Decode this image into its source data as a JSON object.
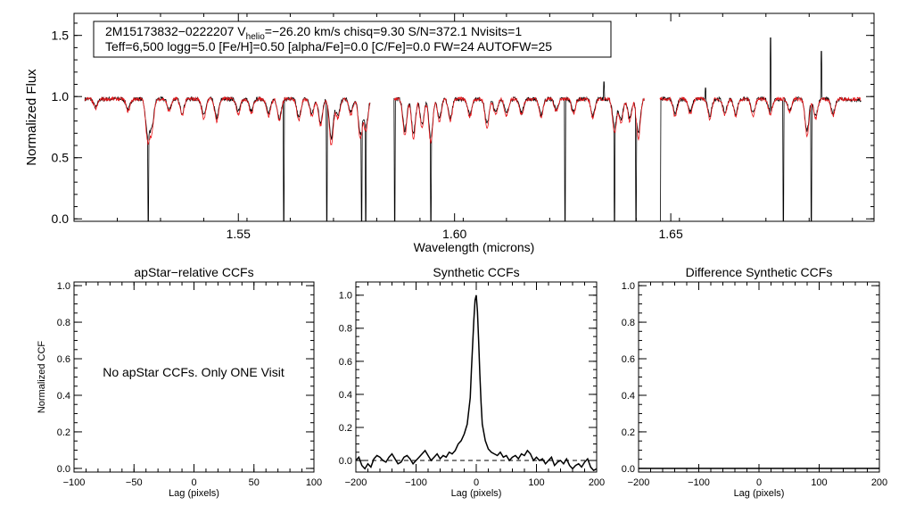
{
  "chart_data": [
    {
      "type": "line",
      "panel": "spectrum",
      "xlabel": "Wavelength (microns)",
      "ylabel": "Normalized Flux",
      "xlim": [
        1.512,
        1.697
      ],
      "ylim": [
        -0.02,
        1.68
      ],
      "xticks": [
        1.55,
        1.6,
        1.65
      ],
      "xtick_labels": [
        "1.55",
        "1.60",
        "1.65"
      ],
      "yticks": [
        0.0,
        0.5,
        1.0,
        1.5
      ],
      "ytick_labels": [
        "0.0",
        "0.5",
        "1.0",
        "1.5"
      ],
      "annotation": {
        "line1_parts": [
          "2M15173832−0222207  V",
          "helio",
          "=−26.20 km/s  chisq=9.30  S/N=372.1  Nvisits=1"
        ],
        "line2": "Teff=6,500 logg=5.0 [Fe/H]=0.50 [alpha/Fe]=0.0 [C/Fe]=0.0 FW=24 AUTOFW=25"
      },
      "chip_ranges": [
        [
          1.5145,
          1.5805
        ],
        [
          1.586,
          1.644
        ],
        [
          1.6475,
          1.694
        ]
      ],
      "continuum": 0.98,
      "absorption_lines": [
        [
          1.517,
          0.9
        ],
        [
          1.5245,
          0.88
        ],
        [
          1.529,
          0.65
        ],
        [
          1.53,
          0.72
        ],
        [
          1.534,
          0.88
        ],
        [
          1.537,
          0.85
        ],
        [
          1.542,
          0.82
        ],
        [
          1.545,
          0.8
        ],
        [
          1.55,
          0.86
        ],
        [
          1.553,
          0.86
        ],
        [
          1.557,
          0.84
        ],
        [
          1.5595,
          0.8
        ],
        [
          1.564,
          0.8
        ],
        [
          1.567,
          0.84
        ],
        [
          1.569,
          0.76
        ],
        [
          1.5715,
          0.6
        ],
        [
          1.573,
          0.82
        ],
        [
          1.576,
          0.85
        ],
        [
          1.5782,
          0.66
        ],
        [
          1.5795,
          0.72
        ],
        [
          1.5885,
          0.68
        ],
        [
          1.5905,
          0.65
        ],
        [
          1.5925,
          0.74
        ],
        [
          1.5945,
          0.62
        ],
        [
          1.5965,
          0.8
        ],
        [
          1.599,
          0.8
        ],
        [
          1.6035,
          0.83
        ],
        [
          1.6075,
          0.74
        ],
        [
          1.6095,
          0.85
        ],
        [
          1.612,
          0.84
        ],
        [
          1.6155,
          0.85
        ],
        [
          1.62,
          0.83
        ],
        [
          1.6235,
          0.88
        ],
        [
          1.6275,
          0.86
        ],
        [
          1.632,
          0.82
        ],
        [
          1.637,
          0.7
        ],
        [
          1.6385,
          0.78
        ],
        [
          1.6405,
          0.8
        ],
        [
          1.6425,
          0.66
        ],
        [
          1.651,
          0.84
        ],
        [
          1.6545,
          0.86
        ],
        [
          1.659,
          0.82
        ],
        [
          1.6625,
          0.85
        ],
        [
          1.665,
          0.84
        ],
        [
          1.669,
          0.84
        ],
        [
          1.673,
          0.86
        ],
        [
          1.6775,
          0.87
        ],
        [
          1.6815,
          0.68
        ],
        [
          1.6835,
          0.82
        ],
        [
          1.6875,
          0.84
        ]
      ],
      "telluric_dropouts": [
        1.5142,
        1.5292,
        1.5605,
        1.5705,
        1.5785,
        1.5795,
        1.5862,
        1.5945,
        1.6255,
        1.637,
        1.642,
        1.6475,
        1.676,
        1.6825
      ],
      "emission_spikes": [
        [
          1.6345,
          1.12
        ],
        [
          1.658,
          1.07
        ],
        [
          1.6731,
          1.48
        ],
        [
          1.6848,
          1.37
        ]
      ],
      "series": [
        {
          "name": "observed",
          "color": "#000000"
        },
        {
          "name": "synthetic",
          "color": "#e8171b"
        }
      ]
    },
    {
      "type": "line",
      "panel": "apstar-relative",
      "title": "apStar−relative CCFs",
      "xlabel": "Lag (pixels)",
      "ylabel": "Normalized CCF",
      "xlim": [
        -100,
        100
      ],
      "ylim": [
        -0.02,
        1.02
      ],
      "xticks": [
        -100,
        -50,
        0,
        50,
        100
      ],
      "xtick_labels": [
        "−100",
        "−50",
        "0",
        "50",
        "100"
      ],
      "yticks": [
        0.0,
        0.2,
        0.4,
        0.6,
        0.8,
        1.0
      ],
      "ytick_labels": [
        "0.0",
        "0.2",
        "0.4",
        "0.6",
        "0.8",
        "1.0"
      ],
      "message": "No apStar CCFs.  Only ONE Visit",
      "series": []
    },
    {
      "type": "line",
      "panel": "synthetic",
      "title": "Synthetic CCFs",
      "xlabel": "Lag (pixels)",
      "xlim": [
        -200,
        200
      ],
      "ylim": [
        -0.07,
        1.08
      ],
      "xticks": [
        -200,
        -100,
        0,
        100,
        200
      ],
      "xtick_labels": [
        "−200",
        "−100",
        "0",
        "100",
        "200"
      ],
      "yticks": [
        0.0,
        0.2,
        0.4,
        0.6,
        0.8,
        1.0
      ],
      "ytick_labels": [
        "0.0",
        "0.2",
        "0.4",
        "0.6",
        "0.8",
        "1.0"
      ],
      "reference_line": 0.0,
      "series": [
        {
          "x": [
            -200,
            -195,
            -190,
            -185,
            -180,
            -175,
            -170,
            -165,
            -160,
            -155,
            -150,
            -145,
            -140,
            -135,
            -130,
            -125,
            -120,
            -115,
            -110,
            -105,
            -100,
            -95,
            -90,
            -85,
            -80,
            -75,
            -70,
            -65,
            -60,
            -55,
            -50,
            -45,
            -40,
            -35,
            -30,
            -25,
            -20,
            -15,
            -10,
            -8,
            -6,
            -4,
            -2,
            0,
            2,
            4,
            6,
            8,
            10,
            15,
            20,
            25,
            30,
            35,
            40,
            45,
            50,
            55,
            60,
            65,
            70,
            75,
            80,
            85,
            90,
            95,
            100,
            105,
            110,
            115,
            120,
            125,
            130,
            135,
            140,
            145,
            150,
            155,
            160,
            165,
            170,
            175,
            180,
            185,
            190,
            195,
            200
          ],
          "y": [
            0.0,
            0.02,
            -0.03,
            -0.05,
            -0.02,
            -0.04,
            0.01,
            0.03,
            0.02,
            0.0,
            -0.01,
            0.02,
            0.04,
            0.01,
            -0.02,
            -0.01,
            0.02,
            0.03,
            0.01,
            -0.02,
            0.0,
            0.02,
            0.04,
            0.06,
            0.03,
            0.0,
            0.02,
            0.04,
            0.01,
            0.03,
            0.02,
            0.05,
            0.04,
            0.06,
            0.1,
            0.12,
            0.16,
            0.22,
            0.38,
            0.55,
            0.7,
            0.85,
            0.97,
            1.0,
            0.9,
            0.72,
            0.52,
            0.35,
            0.22,
            0.12,
            0.07,
            0.05,
            0.04,
            0.03,
            0.05,
            0.02,
            0.03,
            0.0,
            0.02,
            0.03,
            0.01,
            0.04,
            0.03,
            0.06,
            0.04,
            0.0,
            0.02,
            0.0,
            0.01,
            -0.02,
            0.0,
            0.02,
            -0.03,
            -0.01,
            0.0,
            -0.02,
            0.01,
            -0.03,
            -0.05,
            -0.03,
            -0.02,
            -0.04,
            -0.01,
            0.01,
            -0.04,
            -0.06,
            -0.05
          ]
        }
      ]
    },
    {
      "type": "line",
      "panel": "difference-synthetic",
      "title": "Difference Synthetic CCFs",
      "xlabel": "Lag (pixels)",
      "xlim": [
        -200,
        200
      ],
      "ylim": [
        -0.02,
        1.02
      ],
      "xticks": [
        -200,
        -100,
        0,
        100,
        200
      ],
      "xtick_labels": [
        "−200",
        "−100",
        "0",
        "100",
        "200"
      ],
      "yticks": [
        0.0,
        0.2,
        0.4,
        0.6,
        0.8,
        1.0
      ],
      "ytick_labels": [
        "0.0",
        "0.2",
        "0.4",
        "0.6",
        "0.8",
        "1.0"
      ],
      "series": [
        {
          "x": [
            -200,
            200
          ],
          "y": [
            0.0,
            0.0
          ]
        }
      ]
    }
  ]
}
